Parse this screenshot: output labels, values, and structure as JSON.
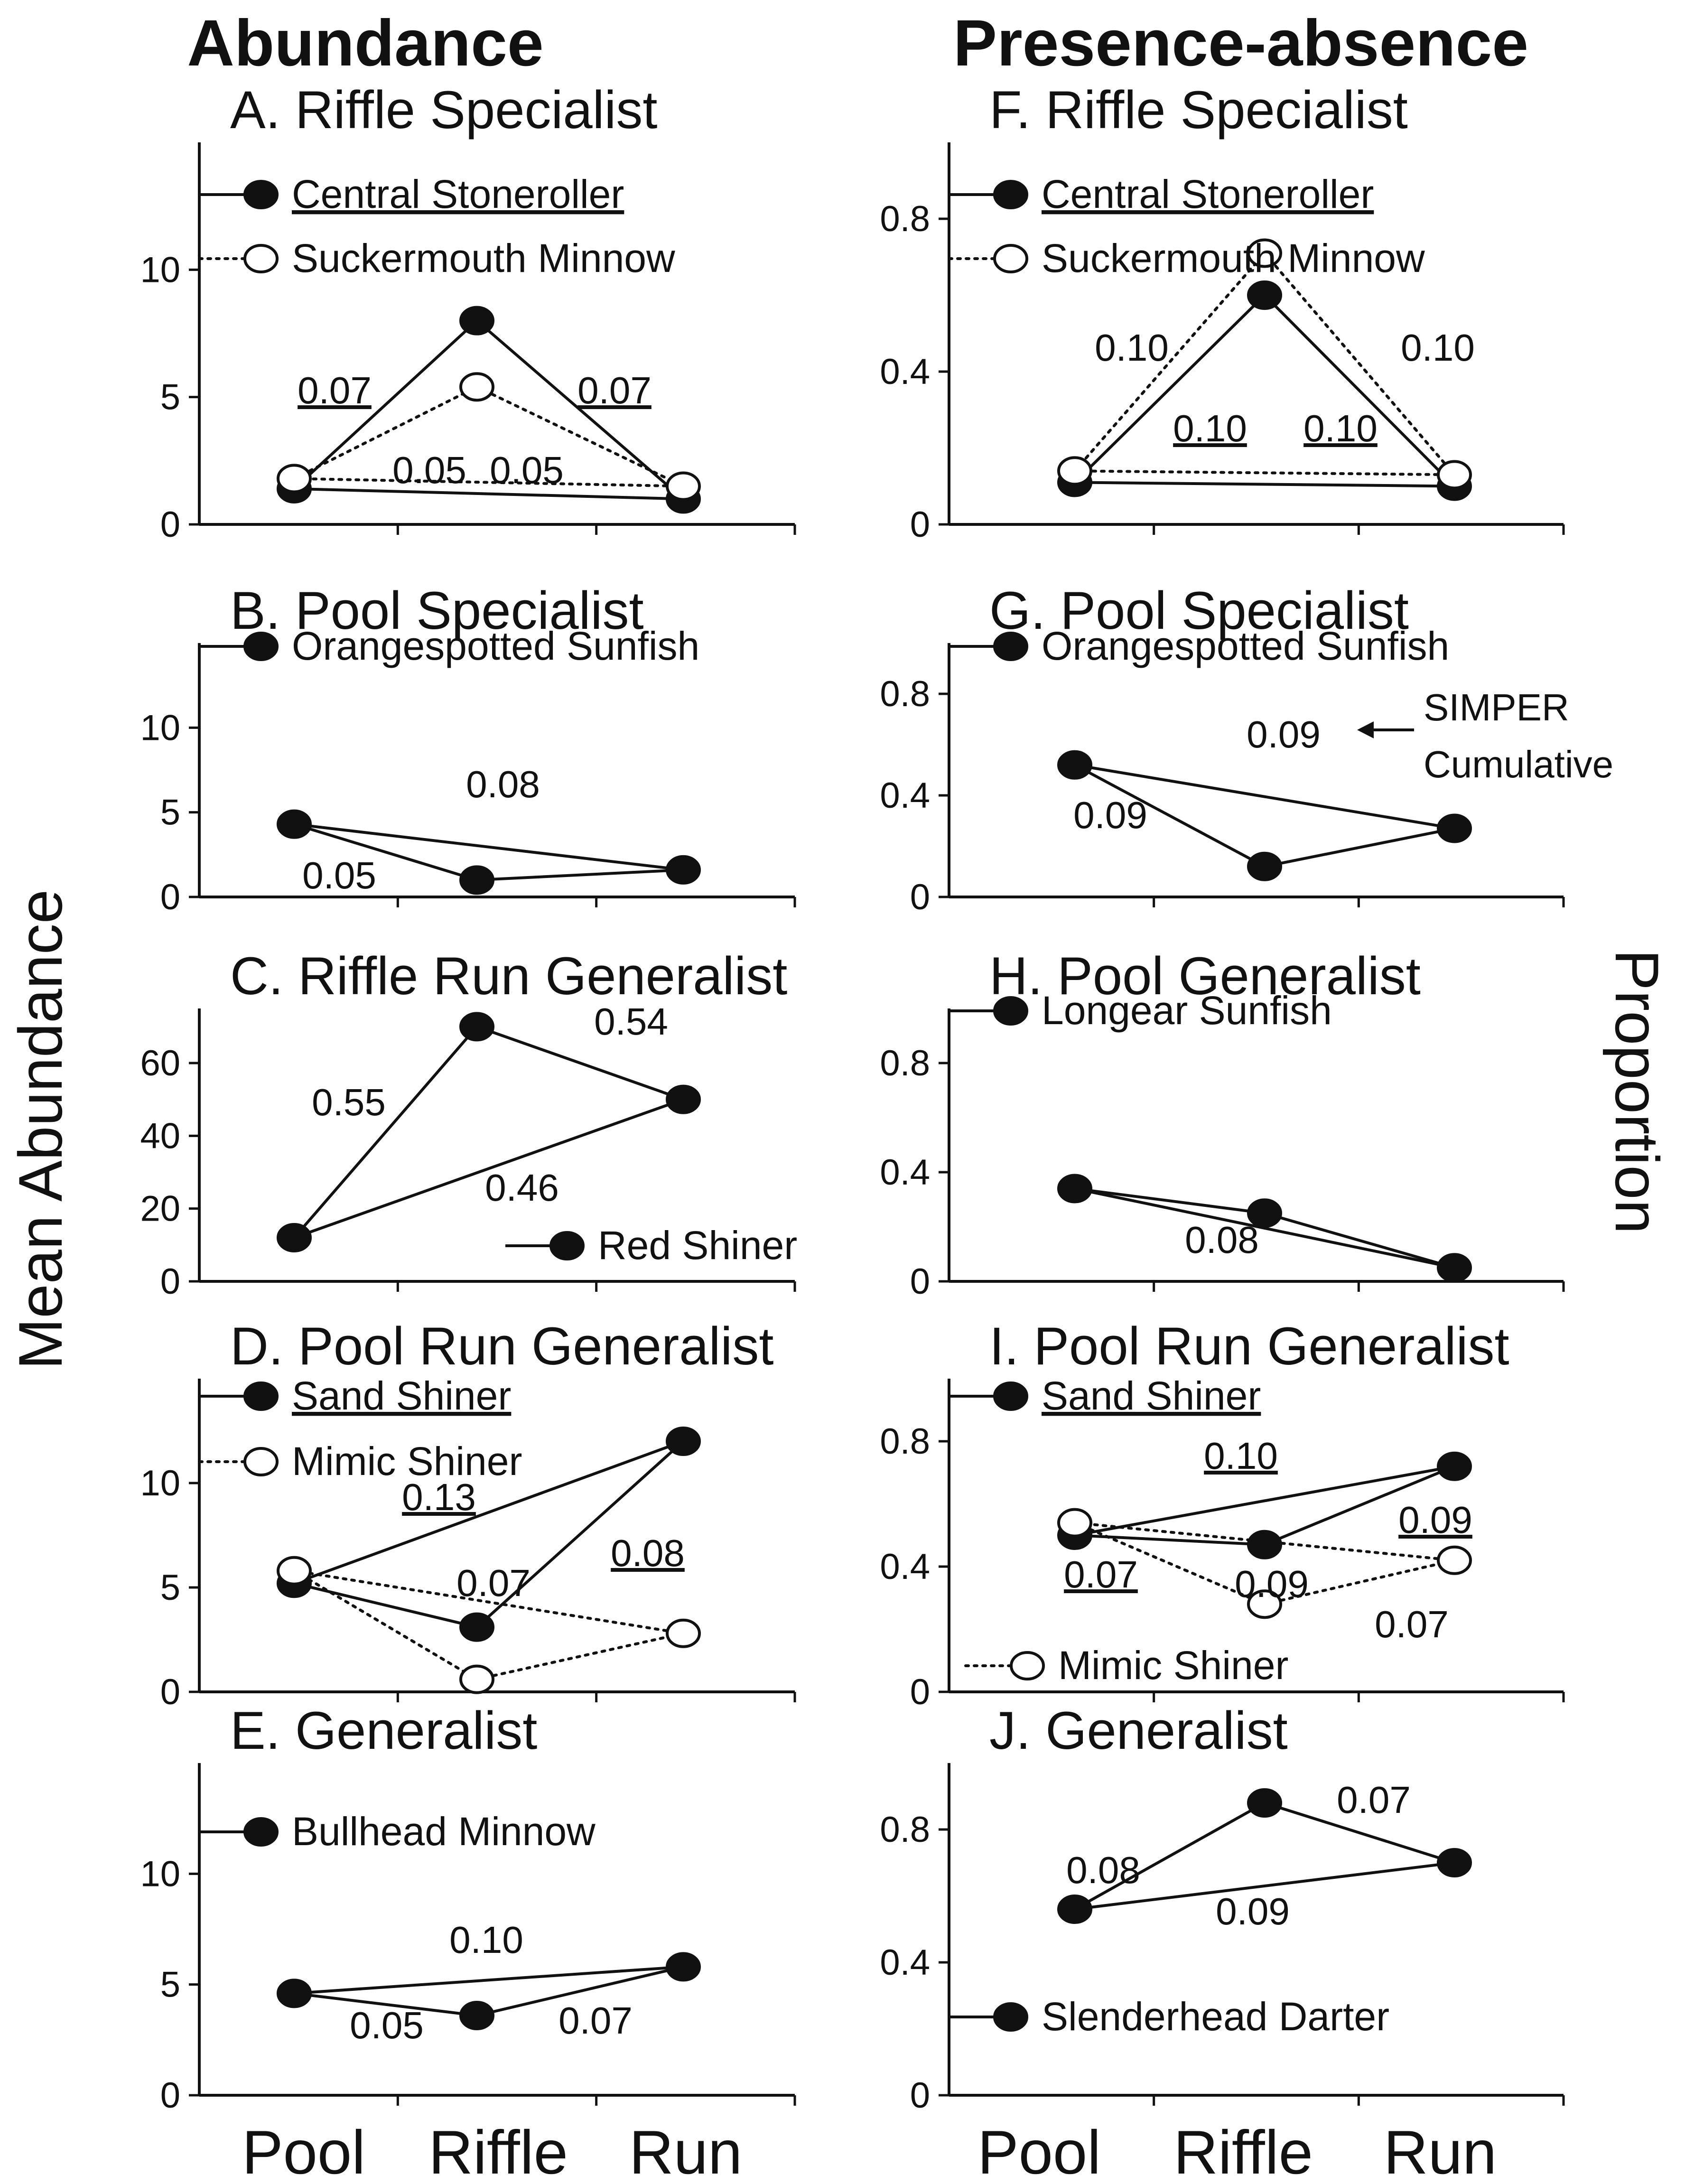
{
  "column_titles": {
    "left": "Abundance",
    "right": "Presence-absence"
  },
  "y_axis_titles": {
    "left": "Mean Abundance",
    "right": "Proportion"
  },
  "x_categories": [
    "Pool",
    "Riffle",
    "Run"
  ],
  "annotation": {
    "text1": "SIMPER",
    "text2": "Cumulative"
  },
  "colors": {
    "ink": "#111111",
    "open_marker_fill": "#ffffff",
    "background": "#ffffff"
  },
  "chart_data": [
    {
      "id": "A",
      "type": "line",
      "column": "left",
      "title": "A. Riffle Specialist",
      "ylim": [
        0,
        15
      ],
      "yticks": [
        0,
        5,
        10
      ],
      "ytick_labels": [
        "0",
        "5",
        "10"
      ],
      "categories": [
        "Pool",
        "Riffle",
        "Run"
      ],
      "series": [
        {
          "name": "Central Stoneroller",
          "underline": true,
          "style": "solid",
          "marker": "filled",
          "values": [
            1.4,
            8.0,
            1.0
          ]
        },
        {
          "name": "Suckermouth Minnow",
          "underline": false,
          "style": "dotted",
          "marker": "open",
          "values": [
            1.8,
            5.4,
            1.5
          ]
        }
      ],
      "labels": [
        {
          "text": "0.07",
          "underline": true
        },
        {
          "text": "0.07",
          "underline": true
        },
        {
          "text": "0.05",
          "underline": false
        },
        {
          "text": "0.05",
          "underline": false
        }
      ]
    },
    {
      "id": "B",
      "type": "line",
      "column": "left",
      "title": "B. Pool Specialist",
      "ylim": [
        0,
        15
      ],
      "yticks": [
        0,
        5,
        10
      ],
      "ytick_labels": [
        "0",
        "5",
        "10"
      ],
      "categories": [
        "Pool",
        "Riffle",
        "Run"
      ],
      "series": [
        {
          "name": "Orangespotted Sunfish",
          "underline": false,
          "style": "solid",
          "marker": "filled",
          "values": [
            4.3,
            1.0,
            1.6
          ]
        }
      ],
      "labels": [
        {
          "text": "0.08",
          "underline": false
        },
        {
          "text": "0.05",
          "underline": false
        }
      ]
    },
    {
      "id": "C",
      "type": "line",
      "column": "left",
      "title": "C. Riffle Run Generalist",
      "ylim": [
        0,
        75
      ],
      "yticks": [
        0,
        20,
        40,
        60
      ],
      "ytick_labels": [
        "0",
        "20",
        "40",
        "60"
      ],
      "categories": [
        "Pool",
        "Riffle",
        "Run"
      ],
      "series": [
        {
          "name": "Red Shiner",
          "underline": false,
          "style": "solid",
          "marker": "filled",
          "values": [
            12,
            70,
            50
          ]
        }
      ],
      "labels": [
        {
          "text": "0.55",
          "underline": false
        },
        {
          "text": "0.54",
          "underline": false
        },
        {
          "text": "0.46",
          "underline": false
        }
      ]
    },
    {
      "id": "D",
      "type": "line",
      "column": "left",
      "title": "D. Pool Run Generalist",
      "ylim": [
        0,
        15
      ],
      "yticks": [
        0,
        5,
        10
      ],
      "ytick_labels": [
        "0",
        "5",
        "10"
      ],
      "categories": [
        "Pool",
        "Riffle",
        "Run"
      ],
      "series": [
        {
          "name": "Sand Shiner",
          "underline": true,
          "style": "solid",
          "marker": "filled",
          "values": [
            5.2,
            3.1,
            12.0
          ]
        },
        {
          "name": "Mimic Shiner",
          "underline": false,
          "style": "dotted",
          "marker": "open",
          "values": [
            5.8,
            0.6,
            2.8
          ]
        }
      ],
      "labels": [
        {
          "text": "0.13",
          "underline": true
        },
        {
          "text": "0.07",
          "underline": false
        },
        {
          "text": "0.08",
          "underline": true
        }
      ]
    },
    {
      "id": "E",
      "type": "line",
      "column": "left",
      "title": "E. Generalist",
      "ylim": [
        0,
        15
      ],
      "yticks": [
        0,
        5,
        10
      ],
      "ytick_labels": [
        "0",
        "5",
        "10"
      ],
      "categories": [
        "Pool",
        "Riffle",
        "Run"
      ],
      "series": [
        {
          "name": "Bullhead Minnow",
          "underline": false,
          "style": "solid",
          "marker": "filled",
          "values": [
            4.6,
            3.6,
            5.8
          ]
        }
      ],
      "labels": [
        {
          "text": "0.10",
          "underline": false
        },
        {
          "text": "0.05",
          "underline": false
        },
        {
          "text": "0.07",
          "underline": false
        }
      ]
    },
    {
      "id": "F",
      "type": "line",
      "column": "right",
      "title": "F. Riffle Specialist",
      "ylim": [
        0,
        1.0
      ],
      "yticks": [
        0,
        0.4,
        0.8
      ],
      "ytick_labels": [
        "0",
        "0.4",
        "0.8"
      ],
      "categories": [
        "Pool",
        "Riffle",
        "Run"
      ],
      "series": [
        {
          "name": "Central Stoneroller",
          "underline": true,
          "style": "solid",
          "marker": "filled",
          "values": [
            0.11,
            0.6,
            0.1
          ]
        },
        {
          "name": "Suckermouth Minnow",
          "underline": false,
          "style": "dotted",
          "marker": "open",
          "values": [
            0.14,
            0.71,
            0.13
          ]
        }
      ],
      "labels": [
        {
          "text": "0.10",
          "underline": false
        },
        {
          "text": "0.10",
          "underline": false
        },
        {
          "text": "0.10",
          "underline": true
        },
        {
          "text": "0.10",
          "underline": true
        }
      ]
    },
    {
      "id": "G",
      "type": "line",
      "column": "right",
      "title": "G. Pool Specialist",
      "ylim": [
        0,
        1.0
      ],
      "yticks": [
        0,
        0.4,
        0.8
      ],
      "ytick_labels": [
        "0",
        "0.4",
        "0.8"
      ],
      "categories": [
        "Pool",
        "Riffle",
        "Run"
      ],
      "series": [
        {
          "name": "Orangespotted Sunfish",
          "underline": false,
          "style": "solid",
          "marker": "filled",
          "values": [
            0.52,
            0.12,
            0.27
          ]
        }
      ],
      "labels": [
        {
          "text": "0.09",
          "underline": false
        },
        {
          "text": "0.09",
          "underline": false
        }
      ]
    },
    {
      "id": "H",
      "type": "line",
      "column": "right",
      "title": "H. Pool Generalist",
      "ylim": [
        0,
        1.0
      ],
      "yticks": [
        0,
        0.4,
        0.8
      ],
      "ytick_labels": [
        "0",
        "0.4",
        "0.8"
      ],
      "categories": [
        "Pool",
        "Riffle",
        "Run"
      ],
      "series": [
        {
          "name": "Longear Sunfish",
          "underline": false,
          "style": "solid",
          "marker": "filled",
          "values": [
            0.34,
            0.25,
            0.05
          ]
        }
      ],
      "labels": [
        {
          "text": "0.08",
          "underline": false
        }
      ]
    },
    {
      "id": "I",
      "type": "line",
      "column": "right",
      "title": "I. Pool Run Generalist",
      "ylim": [
        0,
        1.0
      ],
      "yticks": [
        0,
        0.4,
        0.8
      ],
      "ytick_labels": [
        "0",
        "0.4",
        "0.8"
      ],
      "categories": [
        "Pool",
        "Riffle",
        "Run"
      ],
      "series": [
        {
          "name": "Sand Shiner",
          "underline": true,
          "style": "solid",
          "marker": "filled",
          "values": [
            0.5,
            0.47,
            0.72
          ]
        },
        {
          "name": "Mimic Shiner",
          "underline": false,
          "style": "dotted",
          "marker": "open",
          "values": [
            0.54,
            0.28,
            0.42
          ]
        }
      ],
      "labels": [
        {
          "text": "0.10",
          "underline": true
        },
        {
          "text": "0.09",
          "underline": true
        },
        {
          "text": "0.07",
          "underline": true
        },
        {
          "text": "0.09",
          "underline": false
        },
        {
          "text": "0.07",
          "underline": false
        }
      ]
    },
    {
      "id": "J",
      "type": "line",
      "column": "right",
      "title": "J. Generalist",
      "ylim": [
        0,
        1.0
      ],
      "yticks": [
        0,
        0.4,
        0.8
      ],
      "ytick_labels": [
        "0",
        "0.4",
        "0.8"
      ],
      "categories": [
        "Pool",
        "Riffle",
        "Run"
      ],
      "series": [
        {
          "name": "Slenderhead Darter",
          "underline": false,
          "style": "solid",
          "marker": "filled",
          "values": [
            0.56,
            0.88,
            0.7
          ]
        }
      ],
      "labels": [
        {
          "text": "0.08",
          "underline": false
        },
        {
          "text": "0.07",
          "underline": false
        },
        {
          "text": "0.09",
          "underline": false
        }
      ]
    }
  ]
}
